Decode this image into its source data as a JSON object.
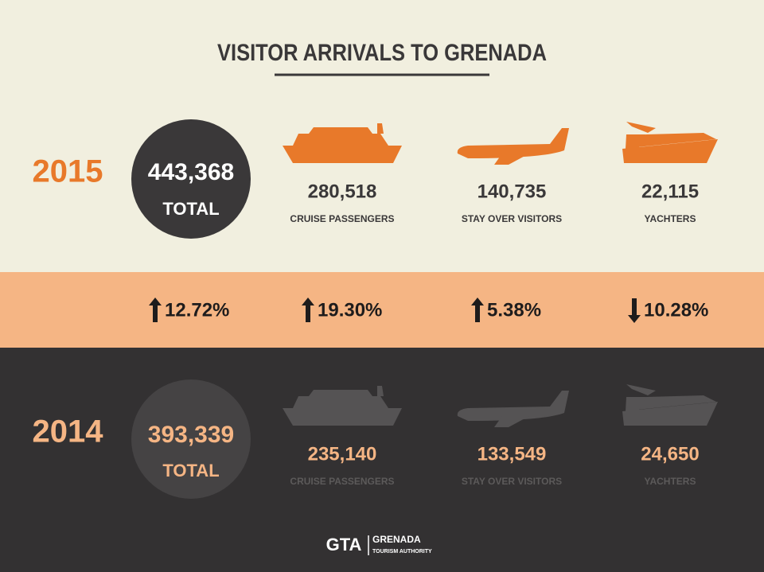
{
  "header": {
    "title": "VISITOR ARRIVALS TO GRENADA"
  },
  "years": [
    {
      "year": "2015",
      "total": "443,368",
      "total_label": "TOTAL",
      "categories": [
        {
          "value": "280,518",
          "label": "CRUISE  PASSENGERS"
        },
        {
          "value": "140,735",
          "label": "STAY OVER VISITORS"
        },
        {
          "value": "22,115",
          "label": "YACHTERS"
        }
      ]
    },
    {
      "year": "2014",
      "total": "393,339",
      "total_label": "TOTAL",
      "categories": [
        {
          "value": "235,140",
          "label": "CRUISE  PASSENGERS"
        },
        {
          "value": "133,549",
          "label": "STAY OVER VISITORS"
        },
        {
          "value": "24,650",
          "label": "YACHTERS"
        }
      ]
    }
  ],
  "changes": [
    {
      "direction": "up",
      "text": "12.72%"
    },
    {
      "direction": "up",
      "text": "19.30%"
    },
    {
      "direction": "up",
      "text": "5.38%"
    },
    {
      "direction": "down",
      "text": "10.28%"
    }
  ],
  "footer": {
    "logo": "GTA",
    "name": "GRENADA",
    "subtitle": "TOURISM AUTHORITY"
  }
}
